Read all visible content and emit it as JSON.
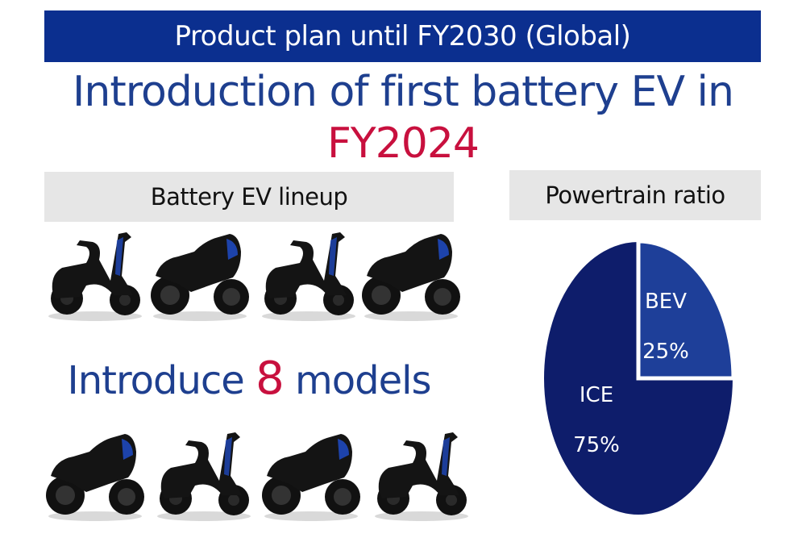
{
  "banner": {
    "title": "Product plan until FY2030 (Global)"
  },
  "headline": {
    "line1": "Introduction of first battery EV in",
    "line2": "FY2024"
  },
  "lineup": {
    "heading": "Battery EV lineup",
    "introduce_pre": "Introduce",
    "introduce_count": "8",
    "introduce_post": "models",
    "models_row1": [
      "scooter",
      "sport",
      "scooter",
      "sport"
    ],
    "models_row2": [
      "sport",
      "scooter",
      "sport",
      "scooter"
    ]
  },
  "ratio": {
    "heading": "Powertrain ratio"
  },
  "colors": {
    "banner": "#0b2f8f",
    "accent_red": "#c8103e",
    "ice": "#0e1d6b",
    "bev": "#1e3f99",
    "headline": "#1e3f8f"
  },
  "chart_data": {
    "type": "pie",
    "title": "Powertrain ratio",
    "labels": [
      "BEV",
      "ICE"
    ],
    "values": [
      25,
      75
    ],
    "value_labels": [
      "25%",
      "75%"
    ],
    "colors": [
      "#1e3f99",
      "#0e1d6b"
    ]
  }
}
